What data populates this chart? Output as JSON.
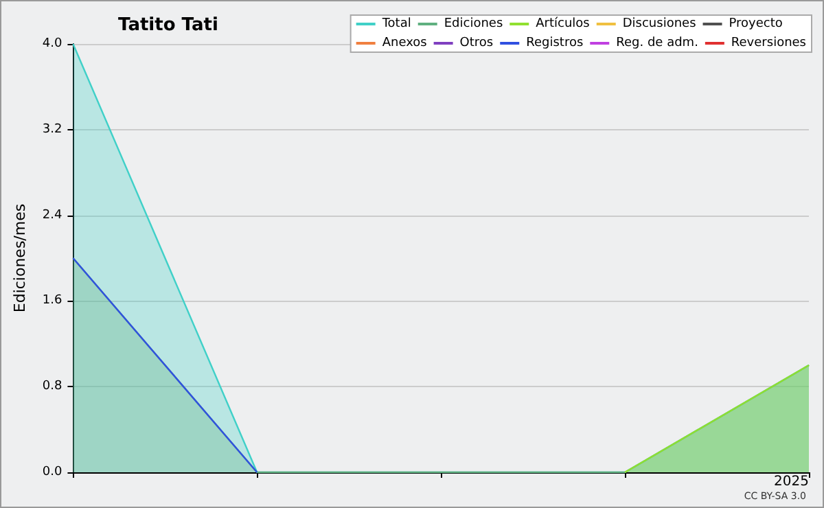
{
  "chart_data": {
    "type": "line",
    "title": "Tatito Tati",
    "ylabel": "Ediciones/mes",
    "annotations": [
      "CC BY-SA 3.0"
    ],
    "categories": [
      null,
      null,
      null,
      null,
      "2025"
    ],
    "series": [
      {
        "name": "Total",
        "type": "area",
        "color": "#40d0c8",
        "values": [
          4,
          0,
          0,
          0,
          1
        ]
      },
      {
        "name": "Ediciones",
        "type": "area",
        "color": "#60b080",
        "values": [
          2,
          0,
          0,
          0,
          1
        ]
      },
      {
        "name": "Artículos",
        "type": "area",
        "color": "#90e030",
        "values": [
          null,
          null,
          null,
          0,
          1
        ]
      },
      {
        "name": "Discusiones",
        "color": "#f0c040",
        "values": [
          null,
          null,
          null,
          null,
          null
        ]
      },
      {
        "name": "Proyecto",
        "color": "#505050",
        "values": [
          null,
          null,
          null,
          null,
          null
        ]
      },
      {
        "name": "Anexos",
        "color": "#f08040",
        "values": [
          null,
          null,
          null,
          null,
          null
        ]
      },
      {
        "name": "Otros",
        "color": "#8040c0",
        "values": [
          null,
          null,
          null,
          null,
          null
        ]
      },
      {
        "name": "Registros",
        "color": "#3050e0",
        "values": [
          2,
          0,
          null,
          null,
          null
        ]
      },
      {
        "name": "Reg. de adm.",
        "color": "#c040e0",
        "values": [
          null,
          null,
          null,
          null,
          null
        ]
      },
      {
        "name": "Reversiones",
        "color": "#e03030",
        "values": [
          null,
          null,
          null,
          null,
          null
        ]
      }
    ],
    "ylim": [
      0,
      4
    ],
    "yticks": [
      {
        "value": 0,
        "label": "0.0"
      },
      {
        "value": 0.8,
        "label": "0.8"
      },
      {
        "value": 1.6,
        "label": "1.6"
      },
      {
        "value": 2.4,
        "label": "2.4"
      },
      {
        "value": 3.2,
        "label": "3.2"
      },
      {
        "value": 4,
        "label": "4.0"
      }
    ],
    "grid": "y",
    "legend": "top right",
    "marker": "none"
  }
}
